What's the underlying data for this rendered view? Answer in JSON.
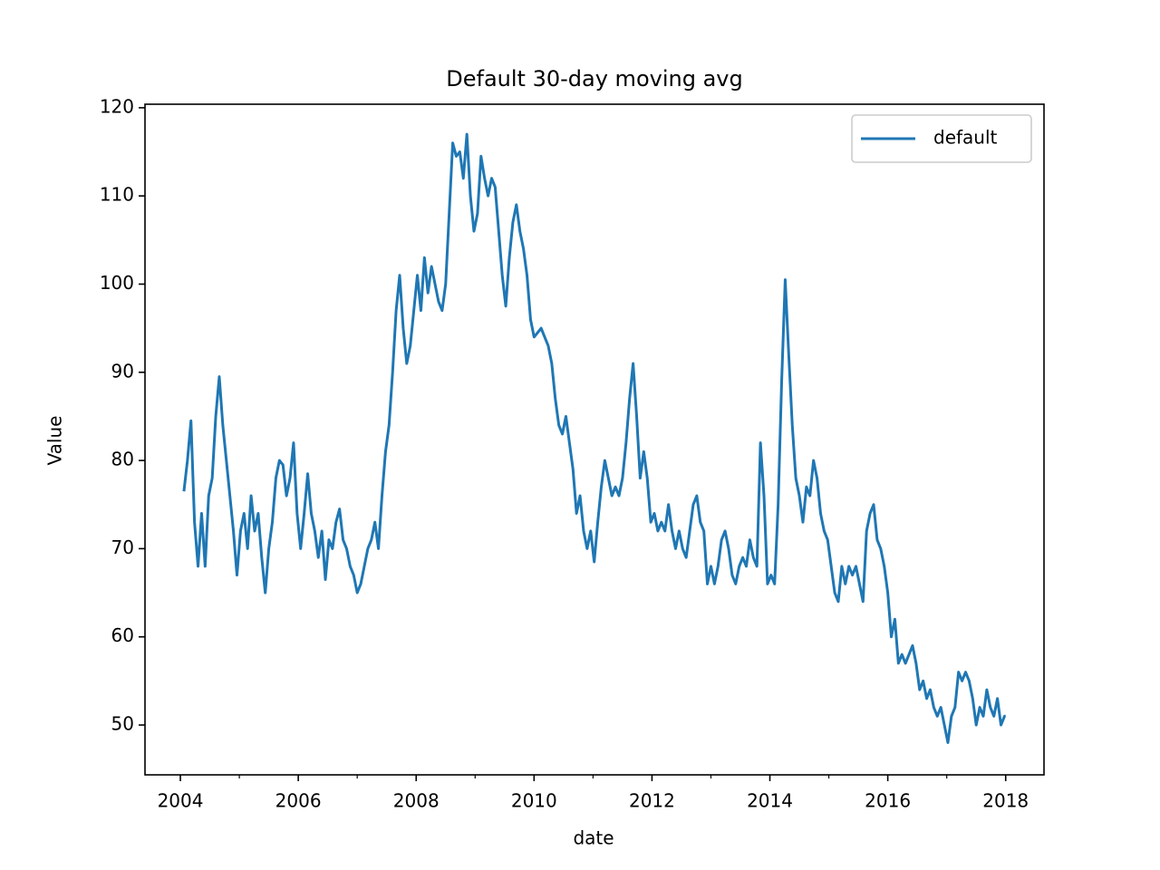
{
  "chart_data": {
    "type": "line",
    "title": "Default 30-day moving avg",
    "x_label": "date",
    "y_label": "Value",
    "x": [
      2004.06,
      2004.12,
      2004.18,
      2004.24,
      2004.3,
      2004.36,
      2004.42,
      2004.48,
      2004.54,
      2004.6,
      2004.66,
      2004.72,
      2004.78,
      2004.84,
      2004.9,
      2004.96,
      2005.02,
      2005.08,
      2005.14,
      2005.2,
      2005.26,
      2005.32,
      2005.38,
      2005.44,
      2005.5,
      2005.56,
      2005.62,
      2005.68,
      2005.74,
      2005.8,
      2005.86,
      2005.92,
      2005.98,
      2006.04,
      2006.1,
      2006.16,
      2006.22,
      2006.28,
      2006.34,
      2006.4,
      2006.46,
      2006.52,
      2006.58,
      2006.64,
      2006.7,
      2006.76,
      2006.82,
      2006.88,
      2006.94,
      2007,
      2007.06,
      2007.12,
      2007.18,
      2007.24,
      2007.3,
      2007.36,
      2007.42,
      2007.48,
      2007.54,
      2007.6,
      2007.66,
      2007.72,
      2007.78,
      2007.84,
      2007.9,
      2007.96,
      2008.02,
      2008.08,
      2008.14,
      2008.2,
      2008.26,
      2008.32,
      2008.38,
      2008.44,
      2008.5,
      2008.56,
      2008.62,
      2008.68,
      2008.74,
      2008.8,
      2008.86,
      2008.92,
      2008.98,
      2009.04,
      2009.1,
      2009.16,
      2009.22,
      2009.28,
      2009.34,
      2009.4,
      2009.46,
      2009.52,
      2009.58,
      2009.64,
      2009.7,
      2009.76,
      2009.82,
      2009.88,
      2009.94,
      2010,
      2010.06,
      2010.12,
      2010.18,
      2010.24,
      2010.3,
      2010.36,
      2010.42,
      2010.48,
      2010.54,
      2010.6,
      2010.66,
      2010.72,
      2010.78,
      2010.84,
      2010.9,
      2010.96,
      2011.02,
      2011.08,
      2011.14,
      2011.2,
      2011.26,
      2011.32,
      2011.38,
      2011.44,
      2011.5,
      2011.56,
      2011.62,
      2011.68,
      2011.74,
      2011.8,
      2011.86,
      2011.92,
      2011.98,
      2012.04,
      2012.1,
      2012.16,
      2012.22,
      2012.28,
      2012.34,
      2012.4,
      2012.46,
      2012.52,
      2012.58,
      2012.64,
      2012.7,
      2012.76,
      2012.82,
      2012.88,
      2012.94,
      2013,
      2013.06,
      2013.12,
      2013.18,
      2013.24,
      2013.3,
      2013.36,
      2013.42,
      2013.48,
      2013.54,
      2013.6,
      2013.66,
      2013.72,
      2013.78,
      2013.84,
      2013.9,
      2013.96,
      2014.02,
      2014.08,
      2014.14,
      2014.2,
      2014.26,
      2014.32,
      2014.38,
      2014.44,
      2014.5,
      2014.56,
      2014.62,
      2014.68,
      2014.74,
      2014.8,
      2014.86,
      2014.92,
      2014.98,
      2015.04,
      2015.1,
      2015.16,
      2015.22,
      2015.28,
      2015.34,
      2015.4,
      2015.46,
      2015.52,
      2015.58,
      2015.64,
      2015.7,
      2015.76,
      2015.82,
      2015.88,
      2015.94,
      2016,
      2016.06,
      2016.12,
      2016.18,
      2016.24,
      2016.3,
      2016.36,
      2016.42,
      2016.48,
      2016.54,
      2016.6,
      2016.66,
      2016.72,
      2016.78,
      2016.84,
      2016.9,
      2016.96,
      2017.02,
      2017.08,
      2017.14,
      2017.2,
      2017.26,
      2017.32,
      2017.38,
      2017.44,
      2017.5,
      2017.56,
      2017.62,
      2017.68,
      2017.74,
      2017.8,
      2017.86,
      2017.92,
      2017.98,
      2018
    ],
    "series": [
      {
        "name": "default",
        "color": "#1f77b4",
        "values": [
          76.5,
          80,
          84.5,
          73,
          68,
          74,
          68,
          76,
          78,
          85,
          89.5,
          84,
          80,
          76,
          72,
          67,
          72,
          74,
          70,
          76,
          72,
          74,
          69,
          65,
          70,
          73,
          78,
          80,
          79.5,
          76,
          78,
          82,
          74,
          70,
          74,
          78.5,
          74,
          72,
          69,
          72,
          66.5,
          71,
          70,
          73,
          74.5,
          71,
          70,
          68,
          67,
          65,
          66,
          68,
          70,
          71,
          73,
          70,
          76,
          81,
          84,
          90,
          97,
          101,
          95,
          91,
          93,
          97,
          101,
          97,
          103,
          99,
          102,
          100,
          98,
          97,
          100,
          108,
          116,
          114.5,
          115,
          112,
          117,
          110,
          106,
          108,
          114.5,
          112,
          110,
          112,
          111,
          106,
          101,
          97.5,
          103,
          107,
          109,
          106,
          104,
          101,
          96,
          94,
          94.5,
          95,
          94,
          93,
          91,
          87,
          84,
          83,
          85,
          82,
          79,
          74,
          76,
          72,
          70,
          72,
          68.5,
          73,
          77,
          80,
          78,
          76,
          77,
          76,
          78,
          82,
          87,
          91,
          85,
          78,
          81,
          78,
          73,
          74,
          72,
          73,
          72,
          75,
          72,
          70,
          72,
          70,
          69,
          72,
          75,
          76,
          73,
          72,
          66,
          68,
          66,
          68,
          71,
          72,
          70,
          67,
          66,
          68,
          69,
          68,
          71,
          69,
          68,
          82,
          76,
          66,
          67,
          66,
          75,
          89,
          100.5,
          92,
          84,
          78,
          76,
          73,
          77,
          76,
          80,
          78,
          74,
          72,
          71,
          68,
          65,
          64,
          68,
          66,
          68,
          67,
          68,
          66,
          64,
          72,
          74,
          75,
          71,
          70,
          68,
          65,
          60,
          62,
          57,
          58,
          57,
          58,
          59,
          57,
          54,
          55,
          53,
          54,
          52,
          51,
          52,
          50,
          48,
          51,
          52,
          56,
          55,
          56,
          55,
          53,
          50,
          52,
          51,
          54,
          52,
          51,
          53,
          50,
          51,
          51
        ]
      }
    ],
    "xlim": [
      2003.4,
      2018.65
    ],
    "xticks": [
      2004,
      2006,
      2008,
      2010,
      2012,
      2014,
      2016,
      2018
    ],
    "xminorticks": [
      2005,
      2007,
      2009,
      2011,
      2013,
      2015,
      2017
    ],
    "ylim": [
      44.35,
      120.4
    ],
    "yticks": [
      50,
      60,
      70,
      80,
      90,
      100,
      110,
      120
    ],
    "legend": "upper right"
  }
}
